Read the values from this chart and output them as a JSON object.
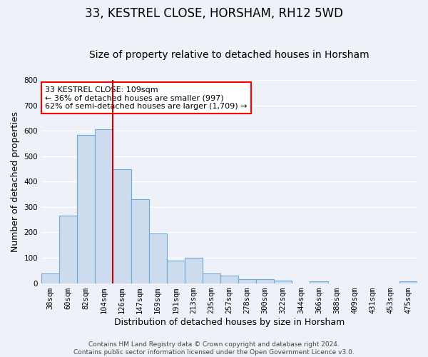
{
  "title": "33, KESTREL CLOSE, HORSHAM, RH12 5WD",
  "subtitle": "Size of property relative to detached houses in Horsham",
  "xlabel": "Distribution of detached houses by size in Horsham",
  "ylabel": "Number of detached properties",
  "bar_labels": [
    "38sqm",
    "60sqm",
    "82sqm",
    "104sqm",
    "126sqm",
    "147sqm",
    "169sqm",
    "191sqm",
    "213sqm",
    "235sqm",
    "257sqm",
    "278sqm",
    "300sqm",
    "322sqm",
    "344sqm",
    "366sqm",
    "388sqm",
    "409sqm",
    "431sqm",
    "453sqm",
    "475sqm"
  ],
  "bar_values": [
    38,
    265,
    585,
    605,
    450,
    330,
    195,
    90,
    100,
    38,
    30,
    15,
    15,
    10,
    0,
    8,
    0,
    0,
    0,
    0,
    8
  ],
  "bar_color": "#ccdcee",
  "bar_edge_color": "#6aaad4",
  "vline_x": 3.5,
  "vline_color": "#cc0000",
  "annotation_box_text": "33 KESTREL CLOSE: 109sqm\n← 36% of detached houses are smaller (997)\n62% of semi-detached houses are larger (1,709) →",
  "ylim": [
    0,
    800
  ],
  "yticks": [
    0,
    100,
    200,
    300,
    400,
    500,
    600,
    700,
    800
  ],
  "footer": "Contains HM Land Registry data © Crown copyright and database right 2024.\nContains public sector information licensed under the Open Government Licence v3.0.",
  "bg_color": "#eef2f8",
  "grid_color": "#ffffff",
  "title_fontsize": 12,
  "subtitle_fontsize": 10,
  "tick_fontsize": 7.5,
  "ylabel_fontsize": 9,
  "xlabel_fontsize": 9,
  "footer_fontsize": 6.5
}
